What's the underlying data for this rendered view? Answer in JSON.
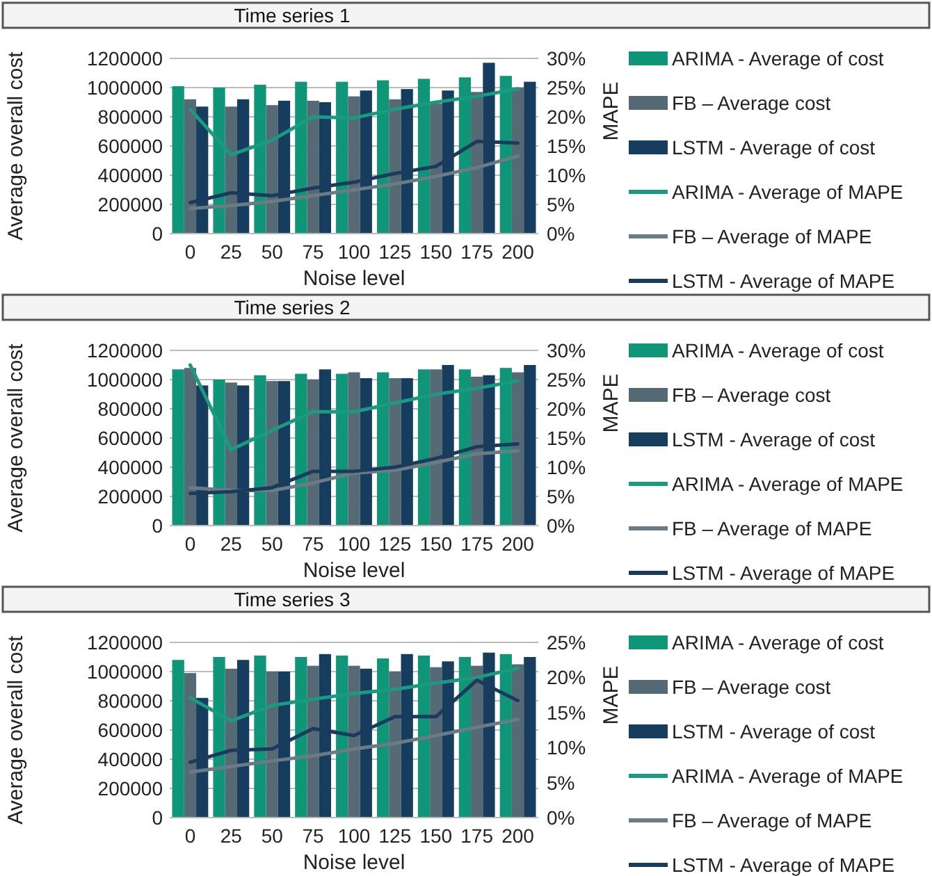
{
  "chart_data": [
    {
      "type": "bar",
      "title": "Time series 1",
      "xlabel": "Noise level",
      "ylabel": "Average overall cost",
      "y2label": "MAPE",
      "categories": [
        "0",
        "25",
        "50",
        "75",
        "100",
        "125",
        "150",
        "175",
        "200"
      ],
      "ylim": [
        0,
        1200000
      ],
      "yticks": [
        0,
        200000,
        400000,
        600000,
        800000,
        1000000,
        1200000
      ],
      "y2lim": [
        0,
        30
      ],
      "y2ticks": [
        {
          "value": 0,
          "label": "0%"
        },
        {
          "value": 5,
          "label": "5%"
        },
        {
          "value": 10,
          "label": "10%"
        },
        {
          "value": 15,
          "label": "15%"
        },
        {
          "value": 20,
          "label": "20%"
        },
        {
          "value": 25,
          "label": "25%"
        },
        {
          "value": 30,
          "label": "30%"
        }
      ],
      "grid": "y",
      "legend": "right",
      "series": [
        {
          "name": "ARIMA - Average of cost",
          "color": "#0f9679",
          "values": [
            1010000,
            1000000,
            1020000,
            1040000,
            1040000,
            1050000,
            1060000,
            1070000,
            1080000
          ]
        },
        {
          "name": "FB – Average cost",
          "color": "#566a75",
          "values": [
            920000,
            870000,
            880000,
            910000,
            940000,
            920000,
            890000,
            970000,
            1000000
          ]
        },
        {
          "name": "LSTM - Average of cost",
          "color": "#163c5e",
          "values": [
            870000,
            920000,
            910000,
            900000,
            980000,
            990000,
            980000,
            1170000,
            1040000
          ]
        },
        {
          "name": "ARIMA - Average of MAPE",
          "type": "line",
          "axis": "y2",
          "color": "#1a9a80",
          "values": [
            21.3,
            13.5,
            16,
            20,
            19.8,
            21.3,
            22.5,
            23.5,
            24.8
          ]
        },
        {
          "name": "FB – Average of MAPE",
          "type": "line",
          "axis": "y2",
          "color": "#6b7b85",
          "values": [
            4.3,
            4.8,
            5.5,
            6.5,
            7.5,
            8.5,
            9.8,
            11.3,
            13.3
          ]
        },
        {
          "name": "LSTM - Average of MAPE",
          "type": "line",
          "axis": "y2",
          "color": "#1b3a5c",
          "values": [
            5.3,
            7,
            6.5,
            7.8,
            8.8,
            10.3,
            11.5,
            15.8,
            15.5
          ]
        }
      ]
    },
    {
      "type": "bar",
      "title": "Time series 2",
      "xlabel": "Noise level",
      "ylabel": "Average overall cost",
      "y2label": "MAPE",
      "categories": [
        "0",
        "25",
        "50",
        "75",
        "100",
        "125",
        "150",
        "175",
        "200"
      ],
      "ylim": [
        0,
        1200000
      ],
      "yticks": [
        0,
        200000,
        400000,
        600000,
        800000,
        1000000,
        1200000
      ],
      "y2lim": [
        0,
        30
      ],
      "y2ticks": [
        {
          "value": 0,
          "label": "0%"
        },
        {
          "value": 5,
          "label": "5%"
        },
        {
          "value": 10,
          "label": "10%"
        },
        {
          "value": 15,
          "label": "15%"
        },
        {
          "value": 20,
          "label": "20%"
        },
        {
          "value": 25,
          "label": "25%"
        },
        {
          "value": 30,
          "label": "30%"
        }
      ],
      "grid": "y",
      "legend": "right",
      "series": [
        {
          "name": "ARIMA - Average of cost",
          "color": "#0f9679",
          "values": [
            1070000,
            1000000,
            1030000,
            1040000,
            1040000,
            1050000,
            1070000,
            1070000,
            1080000
          ]
        },
        {
          "name": "FB – Average cost",
          "color": "#566a75",
          "values": [
            1080000,
            980000,
            990000,
            1000000,
            1050000,
            1010000,
            1070000,
            1020000,
            1050000
          ]
        },
        {
          "name": "LSTM - Average of cost",
          "color": "#163c5e",
          "values": [
            960000,
            960000,
            990000,
            1070000,
            1010000,
            1010000,
            1100000,
            1030000,
            1100000
          ]
        },
        {
          "name": "ARIMA - Average of MAPE",
          "type": "line",
          "axis": "y2",
          "color": "#1a9a80",
          "values": [
            27.5,
            13,
            16.3,
            19.5,
            19.5,
            21,
            22.5,
            23.5,
            24.8
          ]
        },
        {
          "name": "FB – Average of MAPE",
          "type": "line",
          "axis": "y2",
          "color": "#6b7b85",
          "values": [
            6.5,
            6,
            6,
            7.3,
            9,
            9.5,
            10.8,
            12.3,
            12.8
          ]
        },
        {
          "name": "LSTM - Average of MAPE",
          "type": "line",
          "axis": "y2",
          "color": "#1b3a5c",
          "values": [
            5.5,
            5.8,
            6.5,
            9.3,
            9.3,
            10,
            11.5,
            13.5,
            14
          ]
        }
      ]
    },
    {
      "type": "bar",
      "title": "Time series 3",
      "xlabel": "Noise level",
      "ylabel": "Average overall cost",
      "y2label": "MAPE",
      "categories": [
        "0",
        "25",
        "50",
        "75",
        "100",
        "125",
        "150",
        "175",
        "200"
      ],
      "ylim": [
        0,
        1200000
      ],
      "yticks": [
        0,
        200000,
        400000,
        600000,
        800000,
        1000000,
        1200000
      ],
      "y2lim": [
        0,
        25
      ],
      "y2ticks": [
        {
          "value": 0,
          "label": "0%"
        },
        {
          "value": 5,
          "label": "5%"
        },
        {
          "value": 10,
          "label": "10%"
        },
        {
          "value": 15,
          "label": "15%"
        },
        {
          "value": 20,
          "label": "20%"
        },
        {
          "value": 25,
          "label": "25%"
        }
      ],
      "grid": "y",
      "legend": "right",
      "series": [
        {
          "name": "ARIMA - Average of cost",
          "color": "#0f9679",
          "values": [
            1080000,
            1100000,
            1110000,
            1100000,
            1110000,
            1090000,
            1110000,
            1100000,
            1120000
          ]
        },
        {
          "name": "FB – Average cost",
          "color": "#566a75",
          "values": [
            990000,
            1020000,
            1000000,
            1040000,
            1040000,
            1000000,
            1030000,
            1040000,
            1050000
          ]
        },
        {
          "name": "LSTM - Average of cost",
          "color": "#163c5e",
          "values": [
            820000,
            1080000,
            1000000,
            1120000,
            1020000,
            1120000,
            1070000,
            1130000,
            1100000
          ]
        },
        {
          "name": "ARIMA - Average of MAPE",
          "type": "line",
          "axis": "y2",
          "color": "#1a9a80",
          "values": [
            17.1,
            13.8,
            16,
            16.9,
            17.7,
            18.3,
            19.2,
            20,
            21.3
          ]
        },
        {
          "name": "FB – Average of MAPE",
          "type": "line",
          "axis": "y2",
          "color": "#6b7b85",
          "values": [
            6.5,
            7.3,
            8.1,
            8.8,
            9.8,
            10.6,
            11.7,
            12.9,
            14
          ]
        },
        {
          "name": "LSTM - Average of MAPE",
          "type": "line",
          "axis": "y2",
          "color": "#1b3a5c",
          "values": [
            7.9,
            9.6,
            9.8,
            12.7,
            11.7,
            14.4,
            14.4,
            19.6,
            16.7
          ]
        }
      ]
    }
  ]
}
